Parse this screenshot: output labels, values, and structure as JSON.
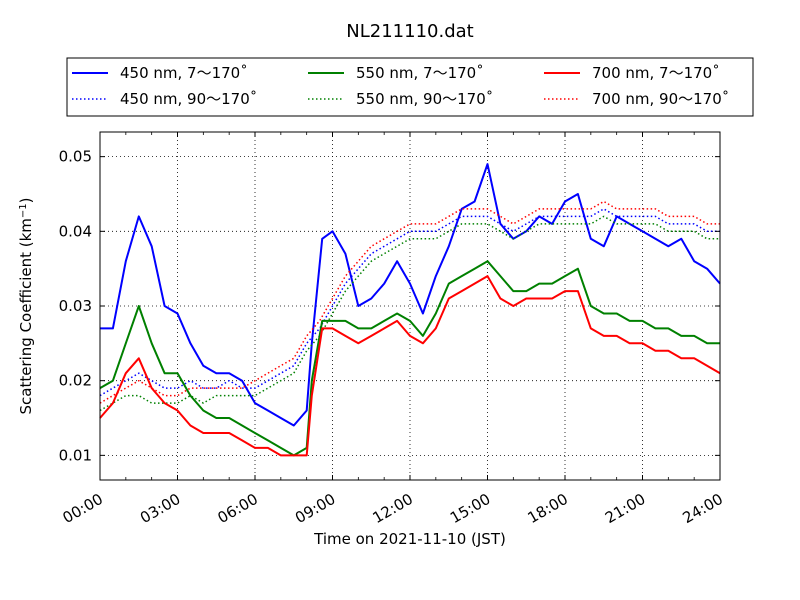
{
  "chart_data": {
    "type": "line",
    "title": "NL211110.dat",
    "xlabel": "Time on 2021-11-10 (JST)",
    "ylabel": "Scattering Coefficient (km",
    "ylabel_sup": "−1",
    "ylabel_close": ")",
    "xlim": [
      0,
      24
    ],
    "ylim": [
      0.0067,
      0.0533
    ],
    "x_ticks": [
      0,
      3,
      6,
      9,
      12,
      15,
      18,
      21,
      24
    ],
    "x_tick_labels": [
      "00:00",
      "03:00",
      "06:00",
      "09:00",
      "12:00",
      "15:00",
      "18:00",
      "21:00",
      "24:00"
    ],
    "y_ticks": [
      0.01,
      0.02,
      0.03,
      0.04,
      0.05
    ],
    "y_tick_labels": [
      "0.01",
      "0.02",
      "0.03",
      "0.04",
      "0.05"
    ],
    "grid": true,
    "legend_placement": "top-center",
    "legend_columns": 3,
    "series": [
      {
        "name": "450 nm, 7～170˚",
        "color": "#0000ff",
        "style": "solid",
        "x": [
          0,
          0.5,
          1,
          1.5,
          2,
          2.5,
          3,
          3.5,
          4,
          4.5,
          5,
          5.5,
          6,
          6.5,
          7,
          7.5,
          8,
          8.2,
          8.6,
          9,
          9.5,
          10,
          10.5,
          11,
          11.5,
          12,
          12.5,
          13,
          13.5,
          14,
          14.5,
          15,
          15.5,
          16,
          16.5,
          17,
          17.5,
          18,
          18.5,
          19,
          19.5,
          20,
          20.5,
          21,
          21.5,
          22,
          22.5,
          23,
          23.5,
          24
        ],
        "y": [
          0.027,
          0.027,
          0.036,
          0.042,
          0.038,
          0.03,
          0.029,
          0.025,
          0.022,
          0.021,
          0.021,
          0.02,
          0.017,
          0.016,
          0.015,
          0.014,
          0.016,
          0.025,
          0.039,
          0.04,
          0.037,
          0.03,
          0.031,
          0.033,
          0.036,
          0.033,
          0.029,
          0.034,
          0.038,
          0.043,
          0.044,
          0.049,
          0.041,
          0.039,
          0.04,
          0.042,
          0.041,
          0.044,
          0.045,
          0.039,
          0.038,
          0.042,
          0.041,
          0.04,
          0.039,
          0.038,
          0.039,
          0.036,
          0.035,
          0.033
        ]
      },
      {
        "name": "450 nm, 90～170˚",
        "color": "#0000ff",
        "style": "dotted",
        "x": [
          0,
          0.5,
          1,
          1.5,
          2,
          2.5,
          3,
          3.5,
          4,
          4.5,
          5,
          5.5,
          6,
          6.5,
          7,
          7.5,
          8,
          8.5,
          9,
          9.5,
          10,
          10.5,
          11,
          11.5,
          12,
          12.5,
          13,
          13.5,
          14,
          14.5,
          15,
          15.5,
          16,
          16.5,
          17,
          17.5,
          18,
          18.5,
          19,
          19.5,
          20,
          20.5,
          21,
          21.5,
          22,
          22.5,
          23,
          23.5,
          24
        ],
        "y": [
          0.018,
          0.019,
          0.02,
          0.021,
          0.02,
          0.019,
          0.019,
          0.02,
          0.019,
          0.019,
          0.02,
          0.019,
          0.019,
          0.02,
          0.021,
          0.022,
          0.025,
          0.027,
          0.03,
          0.033,
          0.035,
          0.037,
          0.038,
          0.039,
          0.04,
          0.04,
          0.04,
          0.041,
          0.042,
          0.042,
          0.042,
          0.041,
          0.04,
          0.041,
          0.042,
          0.042,
          0.042,
          0.042,
          0.042,
          0.043,
          0.042,
          0.042,
          0.042,
          0.042,
          0.041,
          0.041,
          0.041,
          0.04,
          0.04
        ]
      },
      {
        "name": "550 nm, 7～170˚",
        "color": "#008000",
        "style": "solid",
        "x": [
          0,
          0.5,
          1,
          1.5,
          2,
          2.5,
          3,
          3.5,
          4,
          4.5,
          5,
          5.5,
          6,
          6.5,
          7,
          7.5,
          8,
          8.2,
          8.6,
          9,
          9.5,
          10,
          10.5,
          11,
          11.5,
          12,
          12.5,
          13,
          13.5,
          14,
          14.5,
          15,
          15.5,
          16,
          16.5,
          17,
          17.5,
          18,
          18.5,
          19,
          19.5,
          20,
          20.5,
          21,
          21.5,
          22,
          22.5,
          23,
          23.5,
          24
        ],
        "y": [
          0.019,
          0.02,
          0.025,
          0.03,
          0.025,
          0.021,
          0.021,
          0.018,
          0.016,
          0.015,
          0.015,
          0.014,
          0.013,
          0.012,
          0.011,
          0.01,
          0.011,
          0.02,
          0.028,
          0.028,
          0.028,
          0.027,
          0.027,
          0.028,
          0.029,
          0.028,
          0.026,
          0.029,
          0.033,
          0.034,
          0.035,
          0.036,
          0.034,
          0.032,
          0.032,
          0.033,
          0.033,
          0.034,
          0.035,
          0.03,
          0.029,
          0.029,
          0.028,
          0.028,
          0.027,
          0.027,
          0.026,
          0.026,
          0.025,
          0.025
        ]
      },
      {
        "name": "550 nm, 90～170˚",
        "color": "#008000",
        "style": "dotted",
        "x": [
          0,
          0.5,
          1,
          1.5,
          2,
          2.5,
          3,
          3.5,
          4,
          4.5,
          5,
          5.5,
          6,
          6.5,
          7,
          7.5,
          8,
          8.5,
          9,
          9.5,
          10,
          10.5,
          11,
          11.5,
          12,
          12.5,
          13,
          13.5,
          14,
          14.5,
          15,
          15.5,
          16,
          16.5,
          17,
          17.5,
          18,
          18.5,
          19,
          19.5,
          20,
          20.5,
          21,
          21.5,
          22,
          22.5,
          23,
          23.5,
          24
        ],
        "y": [
          0.016,
          0.017,
          0.018,
          0.018,
          0.017,
          0.017,
          0.017,
          0.018,
          0.017,
          0.018,
          0.018,
          0.018,
          0.018,
          0.019,
          0.02,
          0.021,
          0.024,
          0.026,
          0.029,
          0.032,
          0.034,
          0.036,
          0.037,
          0.038,
          0.039,
          0.039,
          0.039,
          0.04,
          0.041,
          0.041,
          0.041,
          0.04,
          0.039,
          0.04,
          0.041,
          0.041,
          0.041,
          0.041,
          0.041,
          0.042,
          0.041,
          0.041,
          0.041,
          0.041,
          0.04,
          0.04,
          0.04,
          0.039,
          0.039
        ]
      },
      {
        "name": "700 nm, 7～170˚",
        "color": "#ff0000",
        "style": "solid",
        "x": [
          0,
          0.5,
          1,
          1.5,
          2,
          2.5,
          3,
          3.5,
          4,
          4.5,
          5,
          5.5,
          6,
          6.5,
          7,
          7.5,
          8,
          8.2,
          8.6,
          9,
          9.5,
          10,
          10.5,
          11,
          11.5,
          12,
          12.5,
          13,
          13.5,
          14,
          14.5,
          15,
          15.5,
          16,
          16.5,
          17,
          17.5,
          18,
          18.5,
          19,
          19.5,
          20,
          20.5,
          21,
          21.5,
          22,
          22.5,
          23,
          23.5,
          24
        ],
        "y": [
          0.015,
          0.017,
          0.021,
          0.023,
          0.019,
          0.017,
          0.016,
          0.014,
          0.013,
          0.013,
          0.013,
          0.012,
          0.011,
          0.011,
          0.01,
          0.01,
          0.01,
          0.018,
          0.027,
          0.027,
          0.026,
          0.025,
          0.026,
          0.027,
          0.028,
          0.026,
          0.025,
          0.027,
          0.031,
          0.032,
          0.033,
          0.034,
          0.031,
          0.03,
          0.031,
          0.031,
          0.031,
          0.032,
          0.032,
          0.027,
          0.026,
          0.026,
          0.025,
          0.025,
          0.024,
          0.024,
          0.023,
          0.023,
          0.022,
          0.021
        ]
      },
      {
        "name": "700 nm, 90～170˚",
        "color": "#ff0000",
        "style": "dotted",
        "x": [
          0,
          0.5,
          1,
          1.5,
          2,
          2.5,
          3,
          3.5,
          4,
          4.5,
          5,
          5.5,
          6,
          6.5,
          7,
          7.5,
          8,
          8.5,
          9,
          9.5,
          10,
          10.5,
          11,
          11.5,
          12,
          12.5,
          13,
          13.5,
          14,
          14.5,
          15,
          15.5,
          16,
          16.5,
          17,
          17.5,
          18,
          18.5,
          19,
          19.5,
          20,
          20.5,
          21,
          21.5,
          22,
          22.5,
          23,
          23.5,
          24
        ],
        "y": [
          0.017,
          0.018,
          0.019,
          0.02,
          0.019,
          0.018,
          0.018,
          0.019,
          0.019,
          0.019,
          0.019,
          0.019,
          0.02,
          0.021,
          0.022,
          0.023,
          0.026,
          0.028,
          0.031,
          0.034,
          0.036,
          0.038,
          0.039,
          0.04,
          0.041,
          0.041,
          0.041,
          0.042,
          0.043,
          0.043,
          0.043,
          0.042,
          0.041,
          0.042,
          0.043,
          0.043,
          0.043,
          0.043,
          0.043,
          0.044,
          0.043,
          0.043,
          0.043,
          0.043,
          0.042,
          0.042,
          0.042,
          0.041,
          0.041
        ]
      }
    ]
  }
}
